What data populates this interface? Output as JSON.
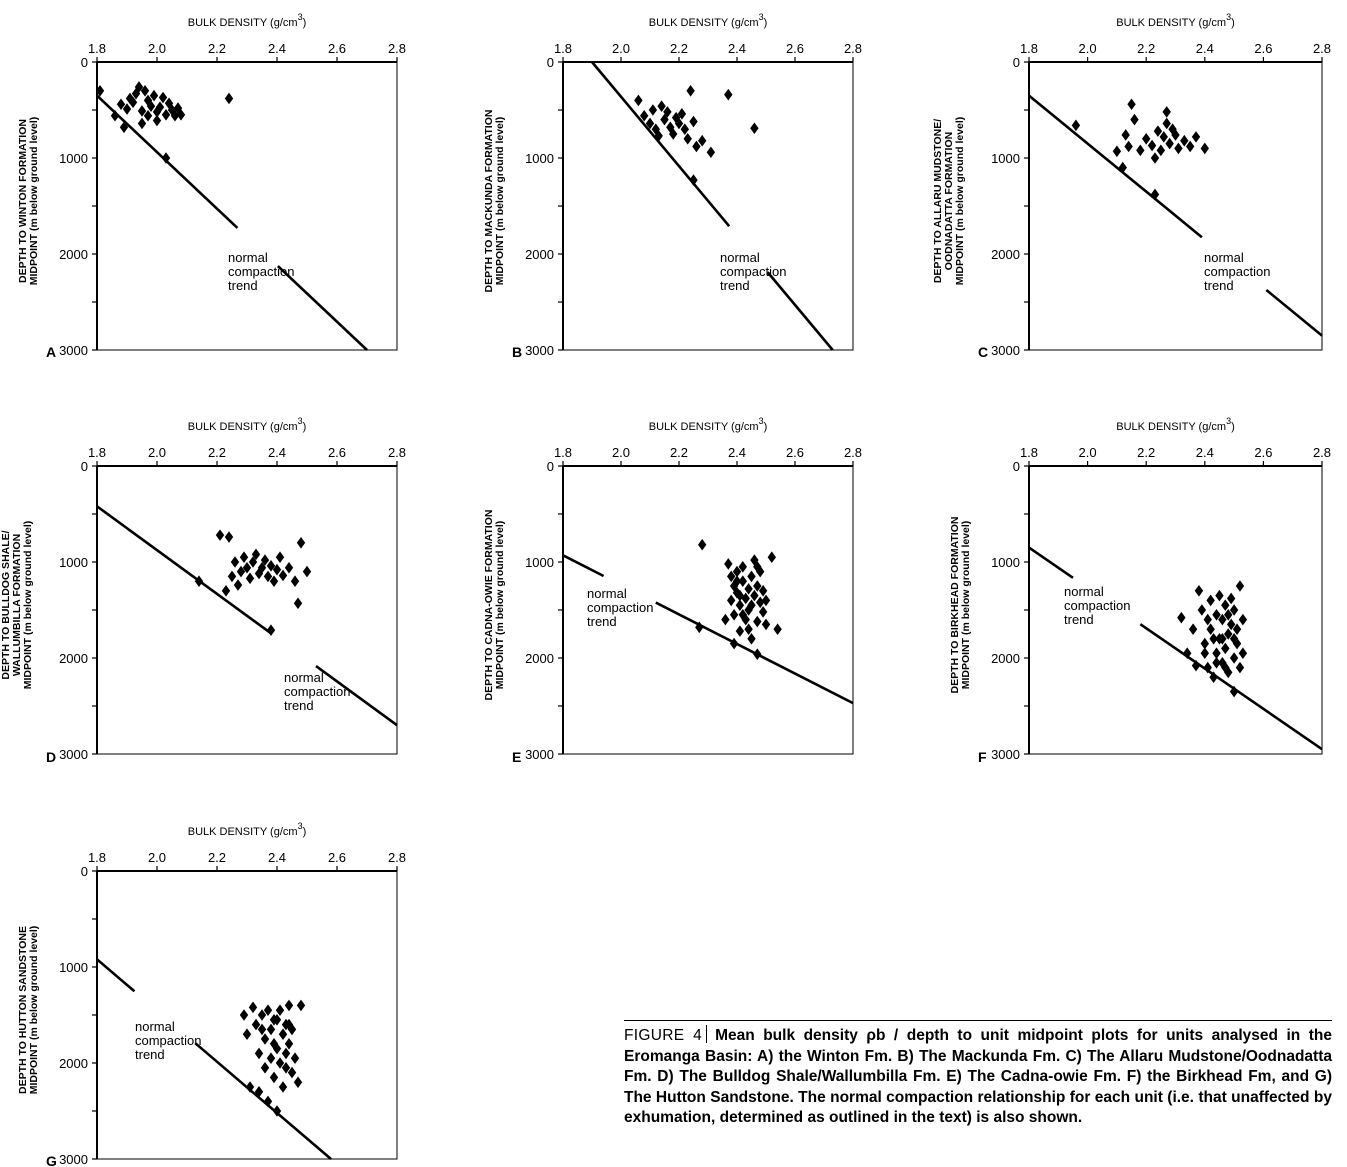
{
  "chart_data": [
    {
      "type": "scatter",
      "panel_label": "A",
      "xlabel": "BULK DENSITY (g/cm",
      "xlabel_sup": "3",
      "xlabel_end": ")",
      "ylabel_lines": [
        "DEPTH TO WINTON  FORMATION",
        "MIDPOINT (m below ground level)"
      ],
      "xlim": [
        1.8,
        2.8
      ],
      "ylim": [
        0,
        3000
      ],
      "xticks": [
        "1.8",
        "2.0",
        "2.2",
        "2.4",
        "2.6",
        "2.8"
      ],
      "yticks": [
        "0",
        "1000",
        "2000",
        "3000"
      ],
      "trend": {
        "start": [
          1.8,
          350
        ],
        "end": [
          2.7,
          3000
        ]
      },
      "trend_label": [
        "normal",
        "compaction",
        "trend"
      ],
      "points": [
        [
          1.81,
          300
        ],
        [
          1.86,
          560
        ],
        [
          1.88,
          440
        ],
        [
          1.89,
          680
        ],
        [
          1.9,
          490
        ],
        [
          1.91,
          380
        ],
        [
          1.92,
          420
        ],
        [
          1.93,
          330
        ],
        [
          1.94,
          260
        ],
        [
          1.95,
          510
        ],
        [
          1.95,
          640
        ],
        [
          1.96,
          300
        ],
        [
          1.97,
          400
        ],
        [
          1.97,
          560
        ],
        [
          1.98,
          460
        ],
        [
          1.99,
          350
        ],
        [
          2.0,
          520
        ],
        [
          2.0,
          610
        ],
        [
          2.01,
          470
        ],
        [
          2.02,
          370
        ],
        [
          2.03,
          550
        ],
        [
          2.04,
          430
        ],
        [
          2.05,
          500
        ],
        [
          2.06,
          560
        ],
        [
          2.07,
          480
        ],
        [
          2.08,
          550
        ],
        [
          2.03,
          1000
        ],
        [
          2.24,
          380
        ]
      ]
    },
    {
      "type": "scatter",
      "panel_label": "B",
      "xlabel": "BULK DENSITY (g/cm",
      "xlabel_sup": "3",
      "xlabel_end": ")",
      "ylabel_lines": [
        "DEPTH TO MACKUNDA FORMATION",
        "MIDPOINT (m below ground level)"
      ],
      "xlim": [
        1.8,
        2.8
      ],
      "ylim": [
        0,
        3000
      ],
      "xticks": [
        "1.8",
        "2.0",
        "2.2",
        "2.4",
        "2.6",
        "2.8"
      ],
      "yticks": [
        "0",
        "1000",
        "2000",
        "3000"
      ],
      "trend": {
        "start": [
          1.9,
          0
        ],
        "end": [
          2.73,
          3000
        ]
      },
      "trend_label": [
        "normal",
        "compaction",
        "trend"
      ],
      "points": [
        [
          2.06,
          400
        ],
        [
          2.08,
          560
        ],
        [
          2.1,
          640
        ],
        [
          2.11,
          500
        ],
        [
          2.12,
          700
        ],
        [
          2.13,
          770
        ],
        [
          2.14,
          460
        ],
        [
          2.15,
          600
        ],
        [
          2.16,
          520
        ],
        [
          2.17,
          680
        ],
        [
          2.18,
          750
        ],
        [
          2.19,
          580
        ],
        [
          2.2,
          640
        ],
        [
          2.21,
          540
        ],
        [
          2.22,
          700
        ],
        [
          2.23,
          800
        ],
        [
          2.24,
          300
        ],
        [
          2.25,
          620
        ],
        [
          2.26,
          880
        ],
        [
          2.28,
          820
        ],
        [
          2.31,
          940
        ],
        [
          2.37,
          340
        ],
        [
          2.46,
          690
        ],
        [
          2.25,
          1230
        ]
      ]
    },
    {
      "type": "scatter",
      "panel_label": "C",
      "xlabel": "BULK DENSITY (g/cm",
      "xlabel_sup": "3",
      "xlabel_end": ")",
      "ylabel_lines": [
        "DEPTH TO ALLARU MUDSTONE/",
        "OODNADATTA FORMATION",
        "MIDPOINT (m below ground level)"
      ],
      "xlim": [
        1.8,
        2.8
      ],
      "ylim": [
        0,
        3000
      ],
      "xticks": [
        "1.8",
        "2.0",
        "2.2",
        "2.4",
        "2.6",
        "2.8"
      ],
      "yticks": [
        "0",
        "1000",
        "2000",
        "3000"
      ],
      "trend": {
        "start": [
          1.8,
          350
        ],
        "end": [
          2.8,
          2850
        ]
      },
      "trend_label": [
        "normal",
        "compaction",
        "trend"
      ],
      "points": [
        [
          1.96,
          660
        ],
        [
          2.1,
          930
        ],
        [
          2.12,
          1100
        ],
        [
          2.13,
          760
        ],
        [
          2.14,
          880
        ],
        [
          2.15,
          440
        ],
        [
          2.16,
          600
        ],
        [
          2.18,
          920
        ],
        [
          2.2,
          800
        ],
        [
          2.22,
          870
        ],
        [
          2.23,
          1000
        ],
        [
          2.24,
          720
        ],
        [
          2.25,
          920
        ],
        [
          2.26,
          780
        ],
        [
          2.27,
          640
        ],
        [
          2.28,
          850
        ],
        [
          2.29,
          700
        ],
        [
          2.3,
          760
        ],
        [
          2.31,
          900
        ],
        [
          2.33,
          820
        ],
        [
          2.35,
          880
        ],
        [
          2.37,
          780
        ],
        [
          2.4,
          900
        ],
        [
          2.27,
          520
        ],
        [
          2.23,
          1380
        ]
      ]
    },
    {
      "type": "scatter",
      "panel_label": "D",
      "xlabel": "BULK DENSITY (g/cm",
      "xlabel_sup": "3",
      "xlabel_end": ")",
      "ylabel_lines": [
        "DEPTH TO BULLDOG SHALE/",
        "WALLUMBILLA FORMATION",
        "MIDPOINT (m below ground level)"
      ],
      "xlim": [
        1.8,
        2.8
      ],
      "ylim": [
        0,
        3000
      ],
      "xticks": [
        "1.8",
        "2.0",
        "2.2",
        "2.4",
        "2.6",
        "2.8"
      ],
      "yticks": [
        "0",
        "1000",
        "2000",
        "3000"
      ],
      "trend": {
        "start": [
          1.8,
          420
        ],
        "end": [
          2.8,
          2700
        ]
      },
      "trend_label": [
        "normal",
        "compaction",
        "trend"
      ],
      "points": [
        [
          2.14,
          1200
        ],
        [
          2.21,
          720
        ],
        [
          2.23,
          1300
        ],
        [
          2.24,
          740
        ],
        [
          2.25,
          1150
        ],
        [
          2.26,
          1000
        ],
        [
          2.27,
          1240
        ],
        [
          2.28,
          1100
        ],
        [
          2.29,
          950
        ],
        [
          2.3,
          1060
        ],
        [
          2.31,
          1170
        ],
        [
          2.32,
          1000
        ],
        [
          2.33,
          920
        ],
        [
          2.34,
          1120
        ],
        [
          2.35,
          1060
        ],
        [
          2.36,
          980
        ],
        [
          2.37,
          1150
        ],
        [
          2.38,
          1040
        ],
        [
          2.39,
          1200
        ],
        [
          2.4,
          1080
        ],
        [
          2.41,
          950
        ],
        [
          2.42,
          1140
        ],
        [
          2.44,
          1060
        ],
        [
          2.46,
          1200
        ],
        [
          2.47,
          1430
        ],
        [
          2.48,
          800
        ],
        [
          2.5,
          1100
        ],
        [
          2.38,
          1710
        ]
      ]
    },
    {
      "type": "scatter",
      "panel_label": "E",
      "xlabel": "BULK DENSITY (g/cm",
      "xlabel_sup": "3",
      "xlabel_end": ")",
      "ylabel_lines": [
        "DEPTH TO CADNA-OWIE FORMATION",
        "MIDPOINT (m below ground level)"
      ],
      "xlim": [
        1.8,
        2.8
      ],
      "ylim": [
        0,
        3000
      ],
      "xticks": [
        "1.8",
        "2.0",
        "2.2",
        "2.4",
        "2.6",
        "2.8"
      ],
      "yticks": [
        "0",
        "1000",
        "2000",
        "3000"
      ],
      "trend": {
        "start": [
          1.8,
          930
        ],
        "end": [
          2.8,
          2470
        ]
      },
      "trend_label": [
        "normal",
        "compaction",
        "trend"
      ],
      "points": [
        [
          2.28,
          820
        ],
        [
          2.27,
          1680
        ],
        [
          2.47,
          1960
        ],
        [
          2.37,
          1020
        ],
        [
          2.38,
          1150
        ],
        [
          2.38,
          1400
        ],
        [
          2.39,
          1250
        ],
        [
          2.39,
          1550
        ],
        [
          2.4,
          1100
        ],
        [
          2.4,
          1320
        ],
        [
          2.41,
          1450
        ],
        [
          2.41,
          1720
        ],
        [
          2.42,
          1200
        ],
        [
          2.42,
          1050
        ],
        [
          2.43,
          1380
        ],
        [
          2.43,
          1600
        ],
        [
          2.44,
          1280
        ],
        [
          2.44,
          1500
        ],
        [
          2.45,
          1150
        ],
        [
          2.45,
          1800
        ],
        [
          2.46,
          1350
        ],
        [
          2.46,
          980
        ],
        [
          2.47,
          1250
        ],
        [
          2.47,
          1620
        ],
        [
          2.48,
          1420
        ],
        [
          2.48,
          1100
        ],
        [
          2.49,
          1300
        ],
        [
          2.49,
          1520
        ],
        [
          2.5,
          1400
        ],
        [
          2.5,
          1650
        ],
        [
          2.52,
          950
        ],
        [
          2.54,
          1700
        ],
        [
          2.36,
          1600
        ],
        [
          2.39,
          1850
        ],
        [
          2.44,
          1700
        ],
        [
          2.4,
          1200
        ],
        [
          2.45,
          1450
        ],
        [
          2.42,
          1550
        ],
        [
          2.47,
          1050
        ],
        [
          2.41,
          1350
        ]
      ]
    },
    {
      "type": "scatter",
      "panel_label": "F",
      "xlabel": "BULK DENSITY (g/cm",
      "xlabel_sup": "3",
      "xlabel_end": ")",
      "ylabel_lines": [
        "DEPTH TO BIRKHEAD FORMATION",
        "MIDPOINT (m below ground level)"
      ],
      "xlim": [
        1.8,
        2.8
      ],
      "ylim": [
        0,
        3000
      ],
      "xticks": [
        "1.8",
        "2.0",
        "2.2",
        "2.4",
        "2.6",
        "2.8"
      ],
      "yticks": [
        "0",
        "1000",
        "2000",
        "3000"
      ],
      "trend": {
        "start": [
          1.8,
          850
        ],
        "end": [
          2.8,
          2950
        ]
      },
      "trend_label": [
        "normal",
        "compaction",
        "trend"
      ],
      "points": [
        [
          2.32,
          1580
        ],
        [
          2.34,
          1950
        ],
        [
          2.36,
          1700
        ],
        [
          2.37,
          2080
        ],
        [
          2.38,
          1300
        ],
        [
          2.39,
          1500
        ],
        [
          2.4,
          1850
        ],
        [
          2.41,
          2100
        ],
        [
          2.42,
          1400
        ],
        [
          2.42,
          1700
        ],
        [
          2.43,
          2200
        ],
        [
          2.44,
          1550
        ],
        [
          2.44,
          1950
        ],
        [
          2.45,
          1350
        ],
        [
          2.45,
          1800
        ],
        [
          2.46,
          2050
        ],
        [
          2.46,
          1600
        ],
        [
          2.47,
          1450
        ],
        [
          2.47,
          1900
        ],
        [
          2.48,
          1750
        ],
        [
          2.48,
          2150
        ],
        [
          2.49,
          1380
        ],
        [
          2.49,
          1650
        ],
        [
          2.5,
          2000
        ],
        [
          2.5,
          1500
        ],
        [
          2.51,
          1850
        ],
        [
          2.51,
          1700
        ],
        [
          2.52,
          1250
        ],
        [
          2.52,
          2100
        ],
        [
          2.53,
          1600
        ],
        [
          2.53,
          1950
        ],
        [
          2.41,
          1600
        ],
        [
          2.43,
          1800
        ],
        [
          2.46,
          1800
        ],
        [
          2.5,
          1800
        ],
        [
          2.48,
          1550
        ],
        [
          2.44,
          2050
        ],
        [
          2.47,
          2100
        ],
        [
          2.5,
          2350
        ],
        [
          2.4,
          1950
        ]
      ]
    },
    {
      "type": "scatter",
      "panel_label": "G",
      "xlabel": "BULK DENSITY (g/cm",
      "xlabel_sup": "3",
      "xlabel_end": ")",
      "ylabel_lines": [
        "DEPTH TO HUTTON SANDSTONE",
        "MIDPOINT (m below ground level)"
      ],
      "xlim": [
        1.8,
        2.8
      ],
      "ylim": [
        0,
        3000
      ],
      "xticks": [
        "1.8",
        "2.0",
        "2.2",
        "2.4",
        "2.6",
        "2.8"
      ],
      "yticks": [
        "0",
        "1000",
        "2000",
        "3000"
      ],
      "trend": {
        "start": [
          1.8,
          920
        ],
        "end": [
          2.58,
          3000
        ]
      },
      "trend_label": [
        "normal",
        "compaction",
        "trend"
      ],
      "points": [
        [
          2.29,
          1500
        ],
        [
          2.3,
          1700
        ],
        [
          2.31,
          2250
        ],
        [
          2.32,
          1420
        ],
        [
          2.33,
          1600
        ],
        [
          2.34,
          1900
        ],
        [
          2.35,
          1500
        ],
        [
          2.36,
          1750
        ],
        [
          2.36,
          2050
        ],
        [
          2.37,
          1450
        ],
        [
          2.38,
          1650
        ],
        [
          2.38,
          1950
        ],
        [
          2.39,
          1800
        ],
        [
          2.39,
          2150
        ],
        [
          2.4,
          1550
        ],
        [
          2.4,
          1850
        ],
        [
          2.41,
          2000
        ],
        [
          2.41,
          1450
        ],
        [
          2.42,
          1700
        ],
        [
          2.42,
          2250
        ],
        [
          2.43,
          1600
        ],
        [
          2.43,
          1900
        ],
        [
          2.44,
          1400
        ],
        [
          2.44,
          1800
        ],
        [
          2.45,
          2100
        ],
        [
          2.45,
          1650
        ],
        [
          2.46,
          1950
        ],
        [
          2.47,
          2200
        ],
        [
          2.48,
          1400
        ],
        [
          2.4,
          2500
        ],
        [
          2.34,
          2300
        ],
        [
          2.37,
          2400
        ],
        [
          2.43,
          2050
        ],
        [
          2.35,
          1650
        ],
        [
          2.39,
          1550
        ],
        [
          2.44,
          1600
        ]
      ]
    }
  ],
  "caption": {
    "label": "FIGURE 4",
    "text": "Mean bulk density ρb / depth to unit midpoint plots for units analysed in the Eromanga Basin: A) the Winton Fm. B) The Mackunda Fm. C) The Allaru Mudstone/Oodnadatta Fm. D) The Bulldog Shale/Wallumbilla Fm. E) The Cadna-owie Fm. F) the Birkhead Fm, and G) The Hutton Sandstone. The normal compaction relationship for each unit (i.e. that unaffected by exhumation, determined as outlined in the text) is also shown."
  }
}
